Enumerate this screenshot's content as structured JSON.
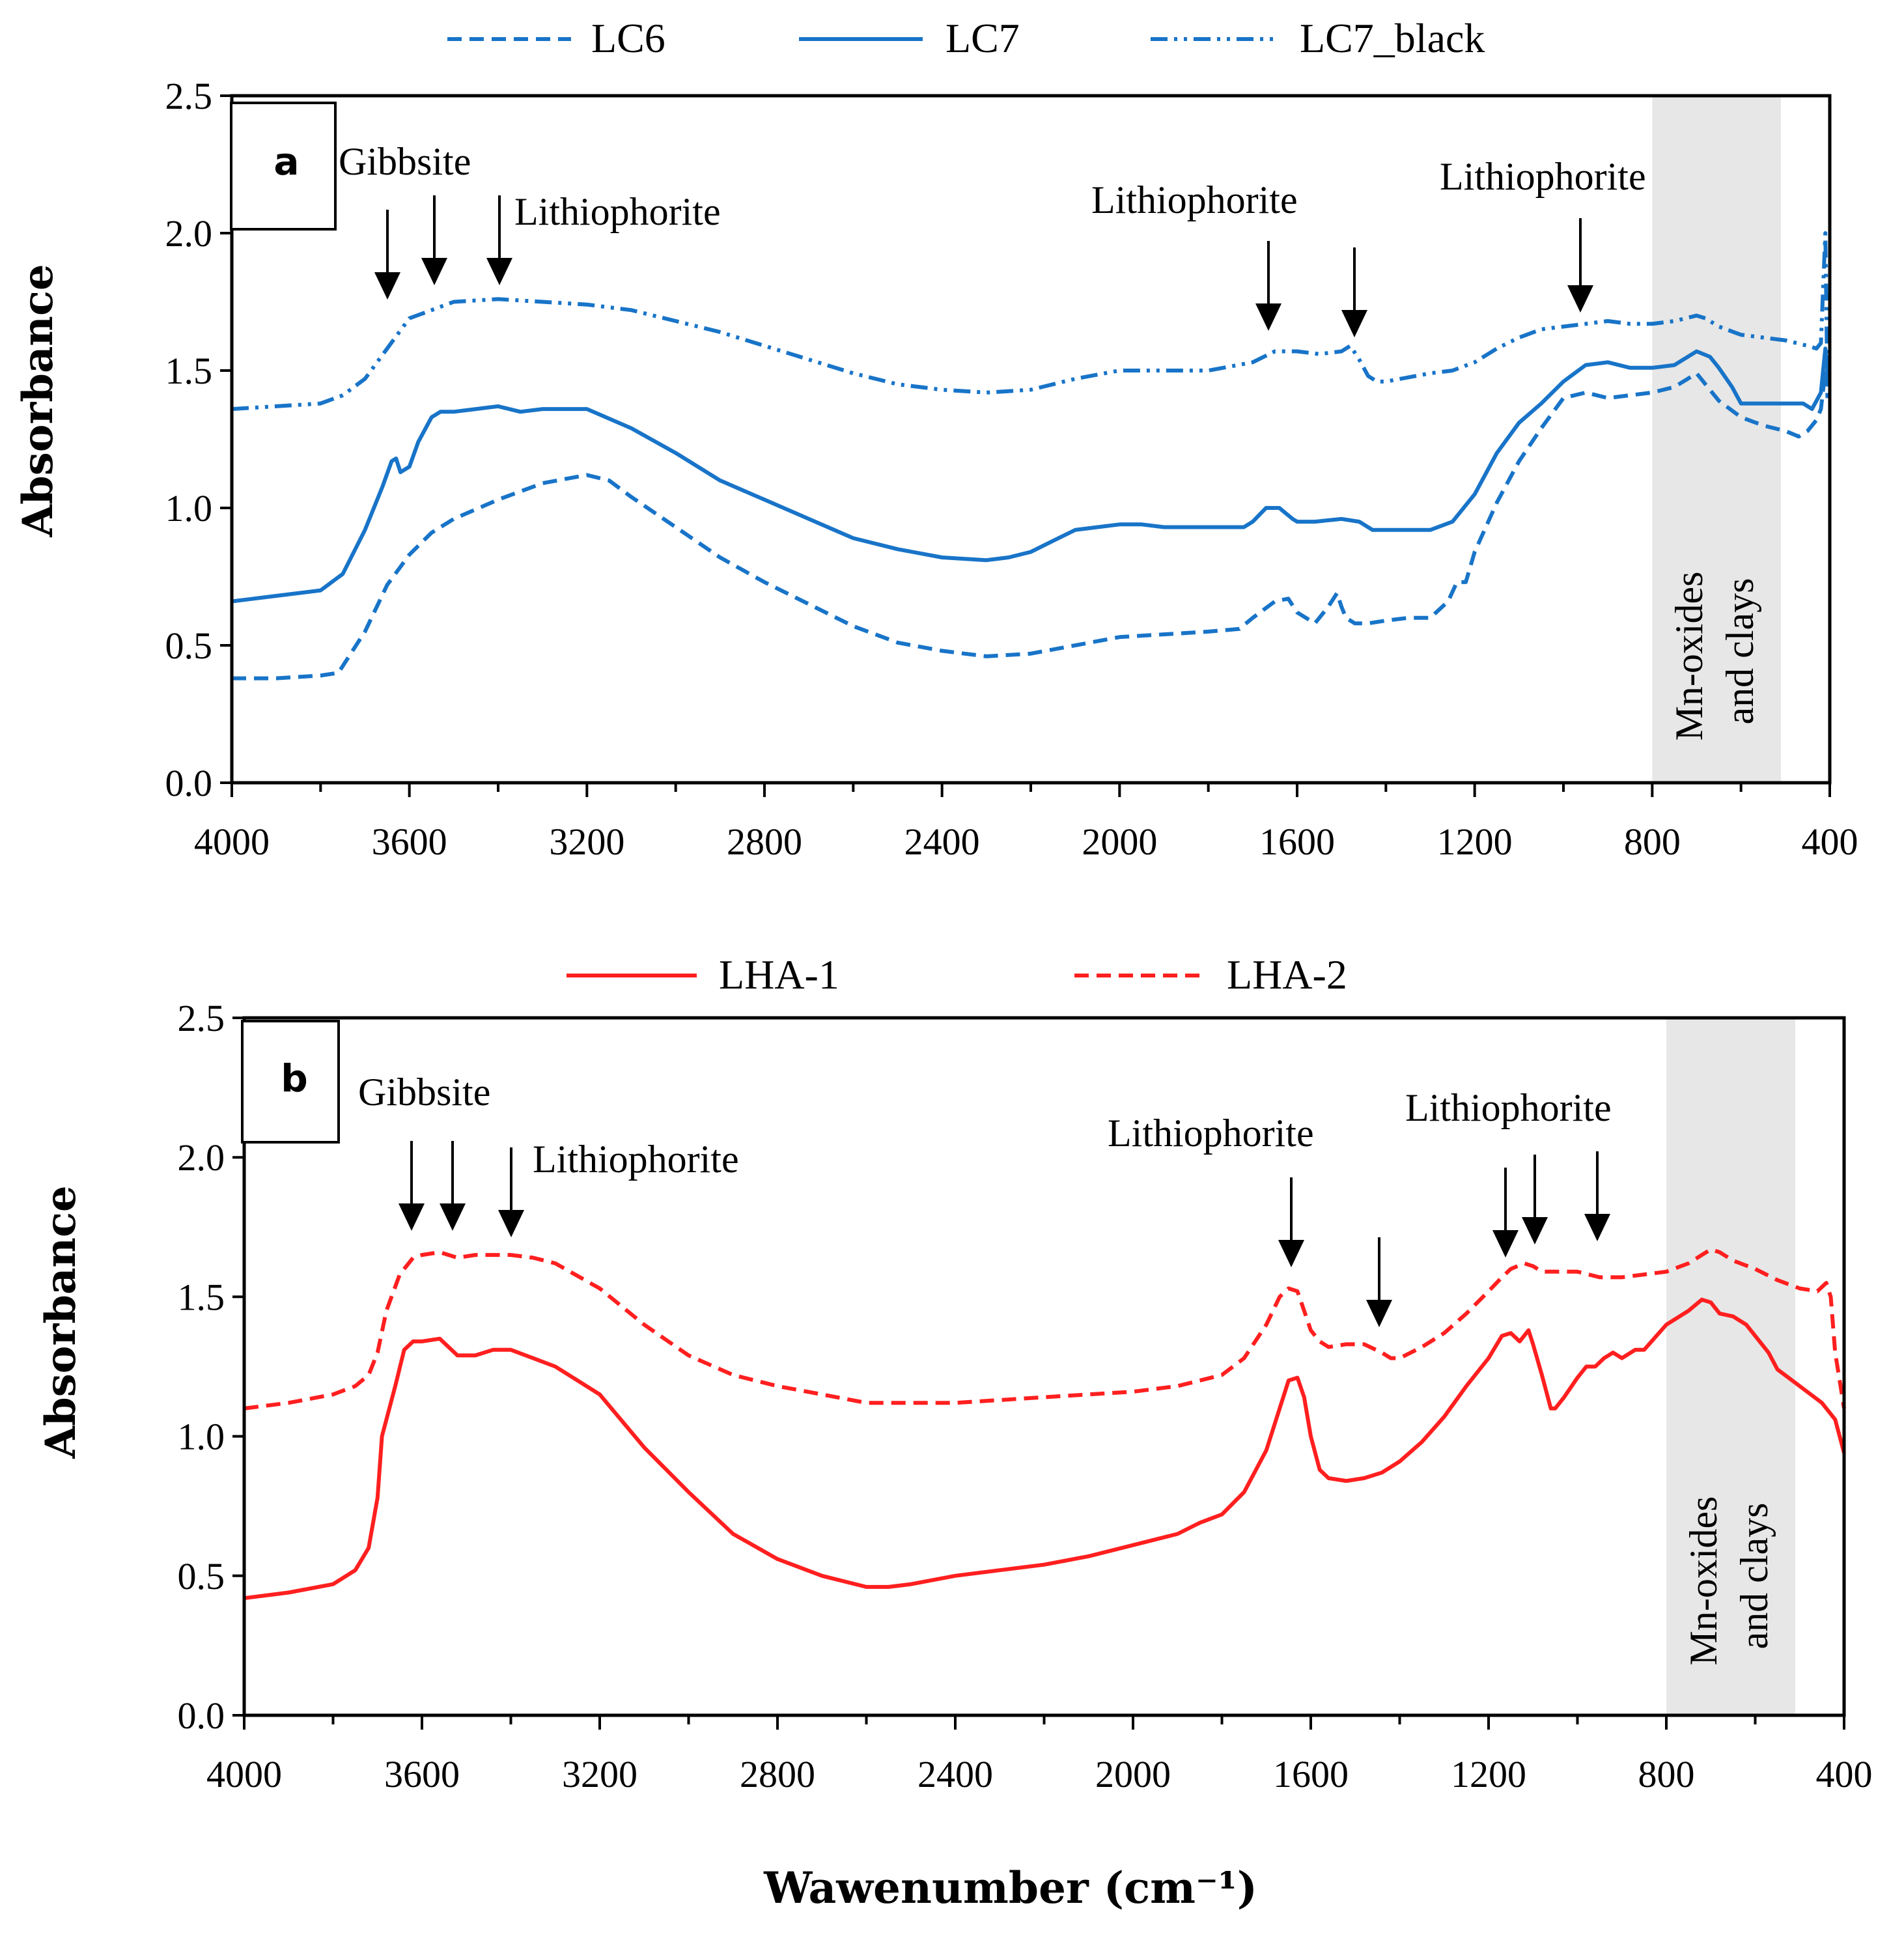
{
  "colors": {
    "blue": "#1874c8",
    "red": "#ff1f1f",
    "band": "#e7e7e7",
    "axis": "#000000"
  },
  "chart_data": [
    {
      "type": "line",
      "panel": "a",
      "xlabel": "",
      "ylabel": "Absorbance",
      "xlim": [
        4000,
        400
      ],
      "ylim": [
        0,
        2.5
      ],
      "xticks": [
        "4000",
        "3600",
        "3200",
        "2800",
        "2400",
        "2000",
        "1600",
        "1200",
        "800",
        "400"
      ],
      "yticks": [
        "0.0",
        "0.5",
        "1.0",
        "1.5",
        "2.0",
        "2.5"
      ],
      "legend": [
        "LC6",
        "LC7",
        "LC7_black"
      ],
      "legend_position": "top",
      "shaded_band": {
        "x": [
          800,
          510
        ],
        "label": [
          "Mn-oxides",
          "and clays"
        ]
      },
      "annotations": [
        {
          "text": "Gibbsite",
          "arrows": [
            3655,
            3550
          ]
        },
        {
          "text": "Lithiophorite",
          "arrows": [
            3405
          ]
        },
        {
          "text": "Lithiophorite",
          "arrows": [
            1650,
            1480
          ]
        },
        {
          "text": "Lithiophorite",
          "arrows": [
            960
          ]
        }
      ],
      "series": [
        {
          "name": "LC6",
          "style": "dashed",
          "x": [
            4000,
            3900,
            3800,
            3760,
            3700,
            3650,
            3600,
            3550,
            3500,
            3400,
            3300,
            3200,
            3150,
            3100,
            3000,
            2900,
            2800,
            2700,
            2600,
            2500,
            2400,
            2300,
            2200,
            2100,
            2000,
            1900,
            1800,
            1730,
            1700,
            1650,
            1620,
            1600,
            1560,
            1530,
            1510,
            1500,
            1490,
            1470,
            1440,
            1400,
            1350,
            1300,
            1260,
            1240,
            1220,
            1200,
            1150,
            1100,
            1050,
            1000,
            950,
            900,
            850,
            800,
            750,
            720,
            700,
            680,
            650,
            600,
            550,
            500,
            470,
            450,
            430,
            420,
            410,
            405
          ],
          "y": [
            0.38,
            0.38,
            0.39,
            0.4,
            0.55,
            0.72,
            0.83,
            0.91,
            0.96,
            1.03,
            1.09,
            1.12,
            1.1,
            1.04,
            0.93,
            0.82,
            0.73,
            0.65,
            0.57,
            0.51,
            0.48,
            0.46,
            0.47,
            0.5,
            0.53,
            0.54,
            0.55,
            0.56,
            0.6,
            0.66,
            0.67,
            0.62,
            0.58,
            0.64,
            0.69,
            0.64,
            0.6,
            0.58,
            0.58,
            0.59,
            0.6,
            0.6,
            0.66,
            0.73,
            0.73,
            0.84,
            1.02,
            1.17,
            1.29,
            1.4,
            1.42,
            1.4,
            1.41,
            1.42,
            1.44,
            1.47,
            1.49,
            1.45,
            1.39,
            1.33,
            1.3,
            1.28,
            1.26,
            1.28,
            1.32,
            1.36,
            1.5,
            1.4
          ]
        },
        {
          "name": "LC7",
          "style": "solid",
          "x": [
            4000,
            3900,
            3800,
            3750,
            3700,
            3660,
            3640,
            3630,
            3620,
            3600,
            3580,
            3550,
            3530,
            3520,
            3500,
            3450,
            3400,
            3350,
            3300,
            3200,
            3100,
            3000,
            2900,
            2800,
            2700,
            2600,
            2500,
            2400,
            2300,
            2250,
            2200,
            2150,
            2100,
            2050,
            2000,
            1950,
            1900,
            1800,
            1720,
            1700,
            1670,
            1640,
            1610,
            1600,
            1560,
            1500,
            1460,
            1430,
            1410,
            1300,
            1250,
            1230,
            1200,
            1150,
            1100,
            1050,
            1000,
            950,
            900,
            850,
            800,
            750,
            720,
            700,
            670,
            650,
            620,
            600,
            550,
            500,
            460,
            440,
            430,
            420,
            410,
            405
          ],
          "y": [
            0.66,
            0.68,
            0.7,
            0.76,
            0.92,
            1.08,
            1.17,
            1.18,
            1.13,
            1.15,
            1.24,
            1.33,
            1.35,
            1.35,
            1.35,
            1.36,
            1.37,
            1.35,
            1.36,
            1.36,
            1.29,
            1.2,
            1.1,
            1.03,
            0.96,
            0.89,
            0.85,
            0.82,
            0.81,
            0.82,
            0.84,
            0.88,
            0.92,
            0.93,
            0.94,
            0.94,
            0.93,
            0.93,
            0.93,
            0.95,
            1.0,
            1.0,
            0.96,
            0.95,
            0.95,
            0.96,
            0.95,
            0.92,
            0.92,
            0.92,
            0.95,
            0.99,
            1.05,
            1.2,
            1.31,
            1.38,
            1.46,
            1.52,
            1.53,
            1.51,
            1.51,
            1.52,
            1.55,
            1.57,
            1.55,
            1.51,
            1.44,
            1.38,
            1.38,
            1.38,
            1.38,
            1.36,
            1.39,
            1.42,
            1.58,
            1.5
          ]
        },
        {
          "name": "LC7_black",
          "style": "dashdot",
          "x": [
            4000,
            3900,
            3800,
            3750,
            3700,
            3650,
            3600,
            3550,
            3500,
            3400,
            3300,
            3200,
            3100,
            3000,
            2900,
            2800,
            2700,
            2600,
            2500,
            2400,
            2300,
            2200,
            2100,
            2000,
            1900,
            1800,
            1700,
            1650,
            1600,
            1550,
            1500,
            1480,
            1460,
            1440,
            1420,
            1400,
            1300,
            1250,
            1200,
            1150,
            1100,
            1050,
            1000,
            950,
            900,
            850,
            800,
            750,
            700,
            680,
            650,
            600,
            550,
            500,
            450,
            430,
            420,
            410,
            405
          ],
          "y": [
            1.36,
            1.37,
            1.38,
            1.41,
            1.47,
            1.58,
            1.69,
            1.72,
            1.75,
            1.76,
            1.75,
            1.74,
            1.72,
            1.68,
            1.64,
            1.59,
            1.54,
            1.49,
            1.45,
            1.43,
            1.42,
            1.43,
            1.47,
            1.5,
            1.5,
            1.5,
            1.53,
            1.57,
            1.57,
            1.56,
            1.57,
            1.59,
            1.54,
            1.48,
            1.46,
            1.46,
            1.49,
            1.5,
            1.53,
            1.58,
            1.62,
            1.65,
            1.66,
            1.67,
            1.68,
            1.67,
            1.67,
            1.68,
            1.7,
            1.69,
            1.66,
            1.63,
            1.62,
            1.61,
            1.59,
            1.58,
            1.6,
            2.0,
            1.4
          ]
        }
      ]
    },
    {
      "type": "line",
      "panel": "b",
      "xlabel": "Wawenumber (cm⁻¹)",
      "ylabel": "Absorbance",
      "xlim": [
        4000,
        400
      ],
      "ylim": [
        0,
        2.5
      ],
      "xticks": [
        "4000",
        "3600",
        "3200",
        "2800",
        "2400",
        "2000",
        "1600",
        "1200",
        "800",
        "400"
      ],
      "yticks": [
        "0.0",
        "0.5",
        "1.0",
        "1.5",
        "2.0",
        "2.5"
      ],
      "legend": [
        "LHA-1",
        "LHA-2"
      ],
      "legend_position": "top",
      "shaded_band": {
        "x": [
          800,
          510
        ],
        "label": [
          "Mn-oxides",
          "and clays"
        ]
      },
      "annotations": [
        {
          "text": "Gibbsite",
          "arrows": [
            3620,
            3540
          ]
        },
        {
          "text": "Lithiophorite",
          "arrows": [
            3415
          ]
        },
        {
          "text": "Lithiophorite",
          "arrows": [
            1630,
            1455
          ]
        },
        {
          "text": "Lithiophorite",
          "arrows": [
            1155,
            1090,
            960
          ]
        }
      ],
      "series": [
        {
          "name": "LHA-1",
          "style": "solid",
          "x": [
            4000,
            3900,
            3800,
            3750,
            3720,
            3700,
            3690,
            3680,
            3660,
            3640,
            3620,
            3600,
            3560,
            3520,
            3480,
            3440,
            3400,
            3350,
            3300,
            3200,
            3100,
            3000,
            2900,
            2800,
            2700,
            2600,
            2550,
            2500,
            2400,
            2300,
            2200,
            2100,
            2000,
            1900,
            1850,
            1800,
            1750,
            1700,
            1670,
            1650,
            1630,
            1615,
            1600,
            1580,
            1560,
            1520,
            1480,
            1440,
            1400,
            1350,
            1300,
            1250,
            1200,
            1170,
            1150,
            1130,
            1110,
            1100,
            1080,
            1060,
            1050,
            1030,
            1000,
            980,
            960,
            940,
            920,
            900,
            870,
            850,
            800,
            750,
            720,
            700,
            680,
            650,
            620,
            600,
            570,
            550,
            500,
            450,
            420,
            410,
            400
          ],
          "y": [
            0.42,
            0.44,
            0.47,
            0.52,
            0.6,
            0.78,
            1.0,
            1.06,
            1.18,
            1.31,
            1.34,
            1.34,
            1.35,
            1.29,
            1.29,
            1.31,
            1.31,
            1.28,
            1.25,
            1.15,
            0.96,
            0.8,
            0.65,
            0.56,
            0.5,
            0.46,
            0.46,
            0.47,
            0.5,
            0.52,
            0.54,
            0.57,
            0.61,
            0.65,
            0.69,
            0.72,
            0.8,
            0.95,
            1.1,
            1.2,
            1.21,
            1.14,
            1.0,
            0.88,
            0.85,
            0.84,
            0.85,
            0.87,
            0.91,
            0.98,
            1.07,
            1.18,
            1.28,
            1.36,
            1.37,
            1.34,
            1.38,
            1.33,
            1.22,
            1.1,
            1.1,
            1.14,
            1.21,
            1.25,
            1.25,
            1.28,
            1.3,
            1.28,
            1.31,
            1.31,
            1.4,
            1.45,
            1.49,
            1.48,
            1.44,
            1.43,
            1.4,
            1.36,
            1.3,
            1.24,
            1.18,
            1.12,
            1.06,
            1.0,
            0.94
          ]
        },
        {
          "name": "LHA-2",
          "style": "dashed",
          "x": [
            4000,
            3900,
            3800,
            3750,
            3720,
            3700,
            3680,
            3650,
            3620,
            3600,
            3560,
            3520,
            3480,
            3400,
            3350,
            3300,
            3200,
            3100,
            3000,
            2900,
            2800,
            2700,
            2600,
            2500,
            2400,
            2300,
            2200,
            2100,
            2000,
            1900,
            1800,
            1750,
            1700,
            1670,
            1650,
            1630,
            1615,
            1600,
            1580,
            1560,
            1520,
            1480,
            1440,
            1420,
            1400,
            1350,
            1300,
            1250,
            1200,
            1170,
            1150,
            1120,
            1100,
            1080,
            1050,
            1000,
            950,
            900,
            850,
            800,
            750,
            720,
            700,
            680,
            650,
            600,
            550,
            500,
            460,
            440,
            430,
            420,
            410,
            400
          ],
          "y": [
            1.1,
            1.12,
            1.15,
            1.18,
            1.22,
            1.3,
            1.45,
            1.58,
            1.64,
            1.65,
            1.66,
            1.64,
            1.65,
            1.65,
            1.64,
            1.62,
            1.53,
            1.4,
            1.29,
            1.22,
            1.18,
            1.15,
            1.12,
            1.12,
            1.12,
            1.13,
            1.14,
            1.15,
            1.16,
            1.18,
            1.22,
            1.28,
            1.4,
            1.5,
            1.53,
            1.52,
            1.45,
            1.38,
            1.34,
            1.32,
            1.33,
            1.33,
            1.3,
            1.28,
            1.28,
            1.32,
            1.37,
            1.44,
            1.52,
            1.57,
            1.6,
            1.62,
            1.61,
            1.59,
            1.59,
            1.59,
            1.57,
            1.57,
            1.58,
            1.59,
            1.62,
            1.65,
            1.67,
            1.66,
            1.63,
            1.6,
            1.56,
            1.53,
            1.52,
            1.55,
            1.5,
            1.3,
            1.2,
            1.1
          ]
        }
      ]
    }
  ]
}
